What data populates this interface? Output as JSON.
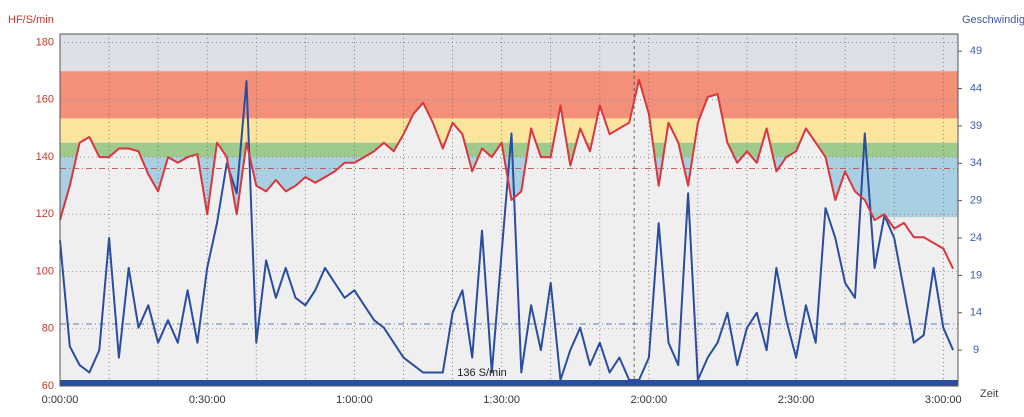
{
  "chart_data": {
    "type": "line",
    "y_label": "HF/S/min",
    "y2_label": "Geschwindig",
    "x_label": "Zeit",
    "annotation": "136 S/min",
    "xlim": [
      0,
      183
    ],
    "ylim": [
      60,
      183
    ],
    "y2lim": [
      4.2,
      51.3
    ],
    "xticks": [
      {
        "value": 0,
        "label": "0:00:00"
      },
      {
        "value": 30,
        "label": "0:30:00"
      },
      {
        "value": 60,
        "label": "1:00:00"
      },
      {
        "value": 90,
        "label": "1:30:00"
      },
      {
        "value": 120,
        "label": "2:00:00"
      },
      {
        "value": 150,
        "label": "2:30:00"
      },
      {
        "value": 180,
        "label": "3:00:00"
      }
    ],
    "x_minor_ticks": [
      10,
      20,
      40,
      50,
      70,
      80,
      100,
      110,
      130,
      140,
      160,
      170
    ],
    "yticks": [
      60,
      80,
      100,
      120,
      140,
      160,
      180
    ],
    "y2ticks": [
      9,
      14,
      19,
      24,
      29,
      34,
      39,
      44,
      49
    ],
    "grid": true,
    "zones": [
      {
        "from": 170,
        "to": 183,
        "color": "#dde0e6"
      },
      {
        "from": 153.5,
        "to": 170,
        "color": "#f4907a"
      },
      {
        "from": 145,
        "to": 153.5,
        "color": "#fbe59c"
      },
      {
        "from": 140,
        "to": 145,
        "color": "#9ecb8c"
      },
      {
        "from": 119,
        "to": 140,
        "color": "#a8cfe2"
      }
    ],
    "hr_reference": 136,
    "speed_reference": 12.5,
    "marker_x": 117,
    "x": [
      0,
      2,
      4,
      6,
      8,
      10,
      12,
      14,
      16,
      18,
      20,
      22,
      24,
      26,
      28,
      30,
      32,
      34,
      36,
      38,
      40,
      42,
      44,
      46,
      48,
      50,
      52,
      54,
      56,
      58,
      60,
      62,
      64,
      66,
      68,
      70,
      72,
      74,
      76,
      78,
      80,
      82,
      84,
      86,
      88,
      90,
      92,
      94,
      96,
      98,
      100,
      102,
      104,
      106,
      108,
      110,
      112,
      114,
      116,
      118,
      120,
      122,
      124,
      126,
      128,
      130,
      132,
      134,
      136,
      138,
      140,
      142,
      144,
      146,
      148,
      150,
      152,
      154,
      156,
      158,
      160,
      162,
      164,
      166,
      168,
      170,
      172,
      174,
      176,
      178,
      180,
      182
    ],
    "series": [
      {
        "name": "HF",
        "color": "#d9363e",
        "values": [
          118,
          130,
          145,
          147,
          140,
          140,
          143,
          143,
          142,
          134,
          128,
          140,
          138,
          140,
          141,
          120,
          145,
          140,
          120,
          145,
          130,
          128,
          132,
          128,
          130,
          133,
          131,
          133,
          135,
          138,
          138,
          140,
          142,
          145,
          142,
          148,
          155,
          159,
          152,
          143,
          152,
          148,
          135,
          143,
          140,
          145,
          125,
          128,
          150,
          140,
          140,
          158,
          137,
          150,
          142,
          158,
          148,
          150,
          152,
          167,
          155,
          130,
          152,
          145,
          130,
          152,
          161,
          162,
          145,
          138,
          142,
          138,
          150,
          135,
          140,
          142,
          150,
          145,
          140,
          125,
          135,
          128,
          125,
          118,
          120,
          115,
          117,
          112,
          112,
          110,
          108,
          101
        ]
      },
      {
        "name": "Geschwindigkeit",
        "color": "#2a4da0",
        "axis": "y2",
        "values": [
          23.7,
          9.5,
          7,
          6,
          9,
          24,
          8,
          20,
          12,
          15,
          10,
          13,
          10,
          17,
          10,
          20,
          26,
          34,
          30,
          45,
          10,
          21,
          16,
          20,
          16,
          15,
          17,
          20,
          18,
          16,
          17,
          15,
          13,
          12,
          10,
          8,
          7,
          6,
          6,
          6,
          14,
          17,
          8,
          25,
          6,
          22,
          38,
          6,
          15,
          9,
          18,
          5,
          9,
          12,
          7,
          10,
          6,
          8,
          5,
          5,
          8,
          26,
          10,
          7,
          30,
          5,
          8,
          10,
          14,
          7,
          12,
          14,
          9,
          20,
          13,
          8,
          15,
          10,
          28,
          24,
          18,
          16,
          38,
          20,
          27,
          24,
          17,
          10,
          11,
          20,
          12,
          9
        ]
      }
    ]
  }
}
